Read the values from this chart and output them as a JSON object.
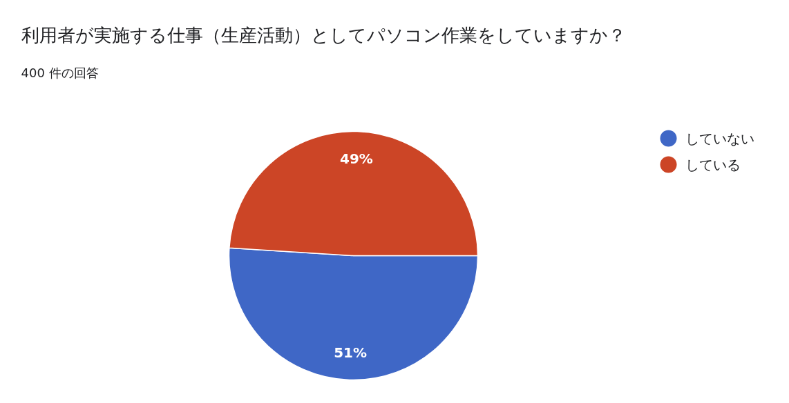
{
  "chart_data": {
    "type": "pie",
    "title": "利用者が実施する仕事（生産活動）としてパソコン作業をしていますか？",
    "subtitle": "400 件の回答",
    "categories": [
      "していない",
      "している"
    ],
    "values": [
      51,
      49
    ],
    "colors": [
      "#3f67c6",
      "#cc4526"
    ],
    "value_labels": [
      "51%",
      "49%"
    ],
    "legend": "right"
  }
}
